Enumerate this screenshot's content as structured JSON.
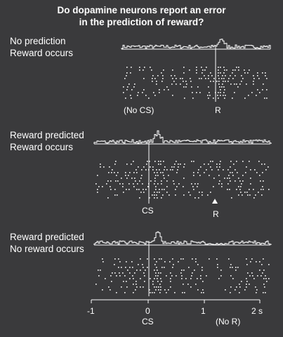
{
  "title_line1": "Do dopamine neurons report an error",
  "title_line2": "in the prediction of reward?",
  "colors": {
    "background": "#3a3a3c",
    "foreground": "#ffffff"
  },
  "panels": [
    {
      "label_line1": "No prediction",
      "label_line2": "Reward occurs",
      "window_s": [
        -1.0,
        1.0
      ],
      "event_marker_s": 0.0,
      "left_event_label": "(No CS)",
      "right_event_label": "R",
      "reward_arrow": false,
      "histogram_peak_s": 0.1
    },
    {
      "label_line1": "Reward predicted",
      "label_line2": "Reward occurs",
      "window_s": [
        -1.0,
        2.0
      ],
      "event_marker_s": 0.0,
      "left_event_label": "CS",
      "right_event_label": "R",
      "reward_arrow": true,
      "histogram_peak_s": 0.15
    },
    {
      "label_line1": "Reward predicted",
      "label_line2": "No reward occurs",
      "window_s": [
        -1.0,
        2.2
      ],
      "event_marker_s": 0.0,
      "left_event_label": "",
      "right_event_label": "",
      "reward_arrow": false,
      "histogram_peak_s": 0.15
    }
  ],
  "axis": {
    "ticks": [
      "-1",
      "0",
      "1",
      "2 s"
    ],
    "cs_label": "CS",
    "no_reward_label": "(No R)"
  }
}
